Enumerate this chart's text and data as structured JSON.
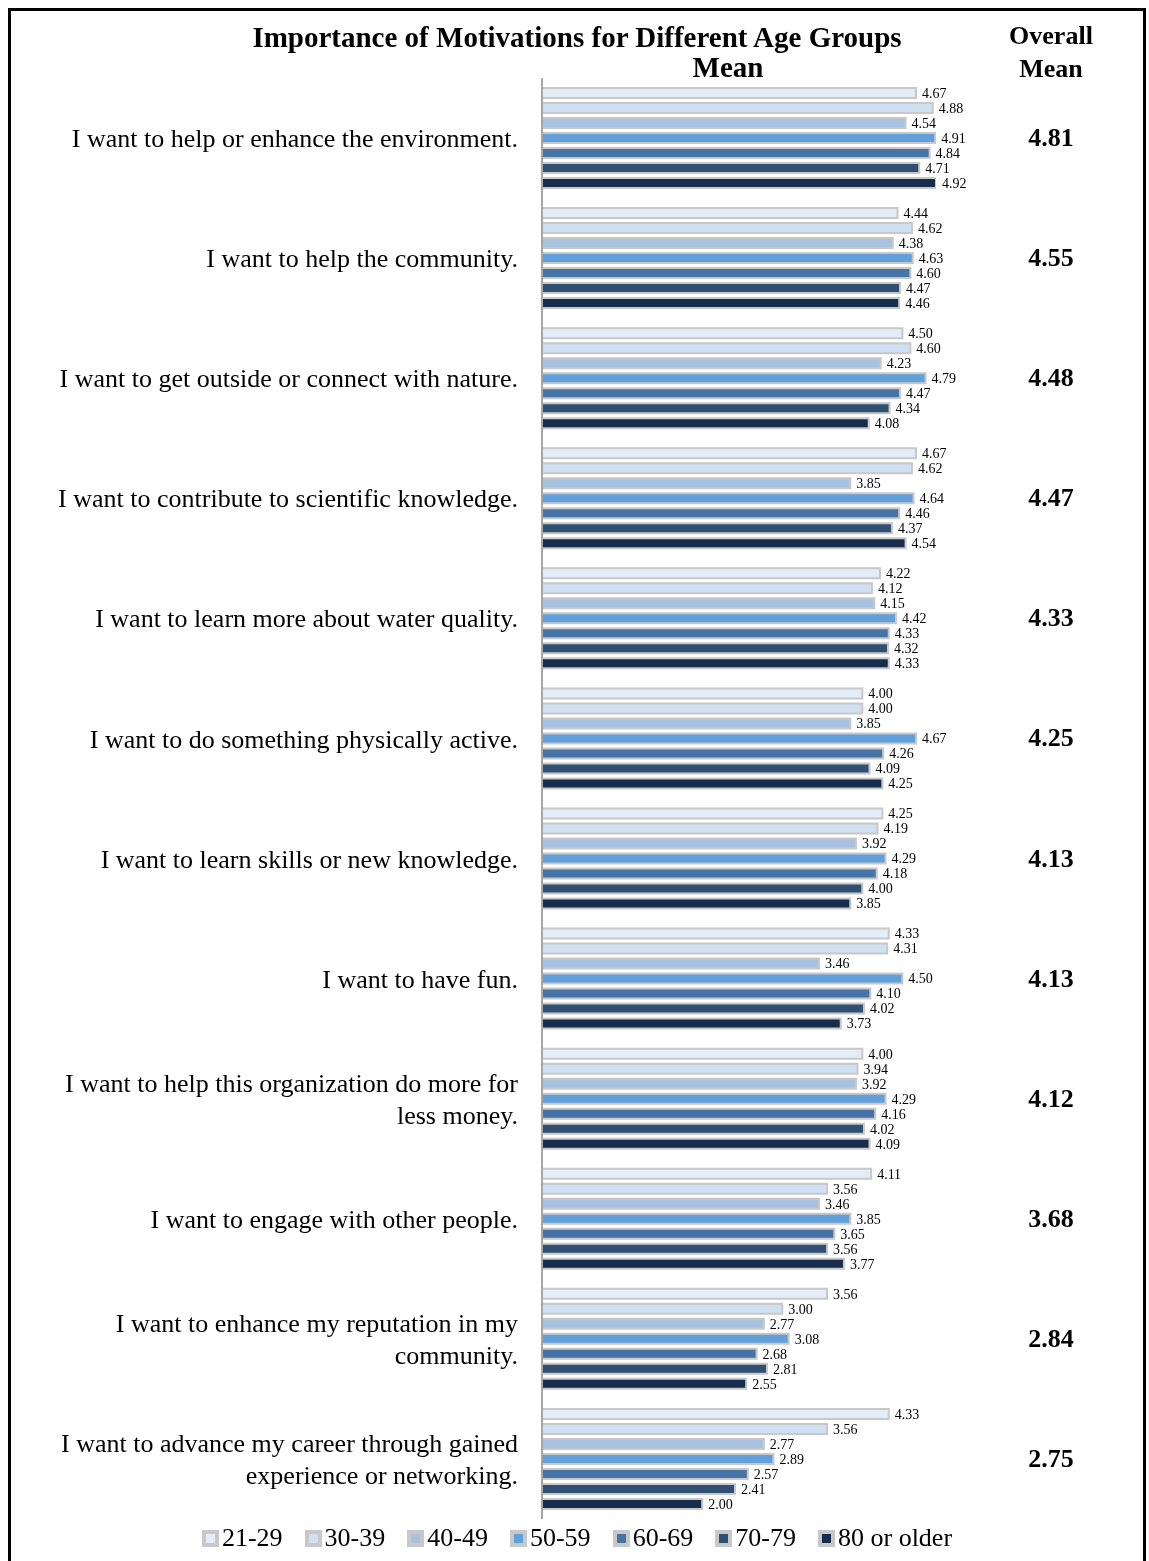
{
  "chart_data": {
    "type": "bar",
    "orientation": "horizontal",
    "title": "Importance of Motivations for Different Age Groups",
    "subtitle": "Mean",
    "categories": [
      "I want to help or enhance the environment.",
      "I want to help the community.",
      "I want to get outside or connect with nature.",
      "I want to contribute to scientific knowledge.",
      "I want to learn more about water quality.",
      "I want to do something physically active.",
      "I want to learn skills or new knowledge.",
      "I want to have fun.",
      "I want to help this organization do more for less money.",
      "I want to engage with other people.",
      "I want to enhance my reputation in my community.",
      "I want to advance my career through gained experience or networking."
    ],
    "series": [
      {
        "name": "21-29",
        "color": "#e4ecf7",
        "values": [
          4.67,
          4.44,
          4.5,
          4.67,
          4.22,
          4.0,
          4.25,
          4.33,
          4.0,
          4.11,
          3.56,
          4.33
        ],
        "value_labels": [
          "4.67",
          "4.44",
          "4.50",
          "4.67",
          "4.22",
          "4.00",
          "4.25",
          "4.33",
          "4.00",
          "4.11",
          "3.56",
          "4.33"
        ]
      },
      {
        "name": "30-39",
        "color": "#d0e0f3",
        "values": [
          4.88,
          4.62,
          4.6,
          4.62,
          4.12,
          4.0,
          4.19,
          4.31,
          3.94,
          3.56,
          3.0,
          3.56
        ],
        "value_labels": [
          "4.88",
          "4.62",
          "4.60",
          "4.62",
          "4.12",
          "4.00",
          "4.19",
          "4.31",
          "3.94",
          "3.56",
          "3.00",
          "3.56"
        ]
      },
      {
        "name": "40-49",
        "color": "#a7c2e0",
        "values": [
          4.54,
          4.38,
          4.23,
          3.85,
          4.15,
          3.85,
          3.92,
          3.46,
          3.92,
          3.46,
          2.77,
          2.77
        ],
        "value_labels": [
          "4.54",
          "4.38",
          "4.23",
          "3.85",
          "4.15",
          "3.85",
          "3.92",
          "3.46",
          "3.92",
          "3.46",
          "2.77",
          "2.77"
        ]
      },
      {
        "name": "50-59",
        "color": "#62a0dc",
        "values": [
          4.91,
          4.63,
          4.79,
          4.64,
          4.42,
          4.67,
          4.29,
          4.5,
          4.29,
          3.85,
          3.08,
          2.89
        ],
        "value_labels": [
          "4.91",
          "4.63",
          "4.79",
          "4.64",
          "4.42",
          "4.67",
          "4.29",
          "4.50",
          "4.29",
          "3.85",
          "3.08",
          "2.89"
        ]
      },
      {
        "name": "60-69",
        "color": "#4674a6",
        "values": [
          4.84,
          4.6,
          4.47,
          4.46,
          4.33,
          4.26,
          4.18,
          4.1,
          4.16,
          3.65,
          2.68,
          2.57
        ],
        "value_labels": [
          "4.84",
          "4.60",
          "4.47",
          "4.46",
          "4.33",
          "4.26",
          "4.18",
          "4.10",
          "4.16",
          "3.65",
          "2.68",
          "2.57"
        ]
      },
      {
        "name": "70-79",
        "color": "#2f5072",
        "values": [
          4.71,
          4.47,
          4.34,
          4.37,
          4.32,
          4.09,
          4.0,
          4.02,
          4.02,
          3.56,
          2.81,
          2.41
        ],
        "value_labels": [
          "4.71",
          "4.47",
          "4.34",
          "4.37",
          "4.32",
          "4.09",
          "4.00",
          "4.02",
          "4.02",
          "3.56",
          "2.81",
          "2.41"
        ]
      },
      {
        "name": "80 or older",
        "color": "#172d4e",
        "values": [
          4.92,
          4.46,
          4.08,
          4.54,
          4.33,
          4.25,
          3.85,
          3.73,
          4.09,
          3.77,
          2.55,
          2.0
        ],
        "value_labels": [
          "4.92",
          "4.46",
          "4.08",
          "4.54",
          "4.33",
          "4.25",
          "3.85",
          "3.73",
          "4.09",
          "3.77",
          "2.55",
          "2.00"
        ]
      }
    ],
    "annotations": [
      "Overall Mean",
      "4.81",
      "4.55",
      "4.48",
      "4.47",
      "4.33",
      "4.25",
      "4.13",
      "4.13",
      "4.12",
      "3.68",
      "2.84",
      "2.75"
    ],
    "legend": "bottom",
    "tick_labels": "y"
  }
}
